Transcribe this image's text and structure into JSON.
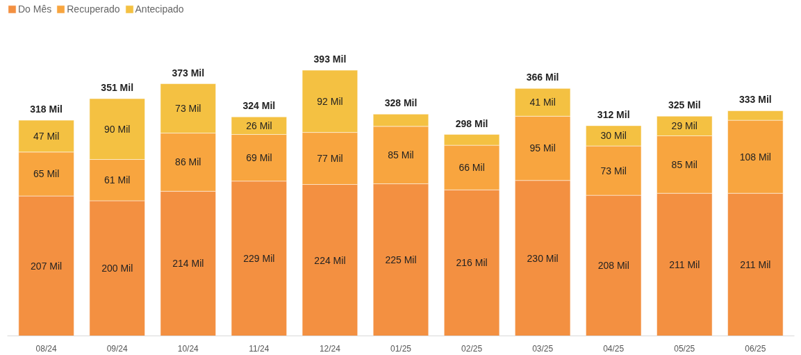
{
  "chart_data": {
    "type": "bar",
    "stacked": true,
    "legend": "top left",
    "grid": false,
    "tick_labels": "x",
    "categories": [
      "08/24",
      "09/24",
      "10/24",
      "11/24",
      "12/24",
      "01/25",
      "02/25",
      "03/25",
      "04/25",
      "05/25",
      "06/25"
    ],
    "series": [
      {
        "name": "Do Mês",
        "color": "#f39041",
        "values": [
          207,
          200,
          214,
          229,
          224,
          225,
          216,
          230,
          208,
          211,
          211
        ],
        "value_labels": [
          "207 Mil",
          "200 Mil",
          "214 Mil",
          "229 Mil",
          "224 Mil",
          "225 Mil",
          "216 Mil",
          "230 Mil",
          "208 Mil",
          "211 Mil",
          "211 Mil"
        ]
      },
      {
        "name": "Recuperado",
        "color": "#f8a53f",
        "values": [
          65,
          61,
          86,
          69,
          77,
          85,
          66,
          95,
          73,
          85,
          108
        ],
        "value_labels": [
          "65 Mil",
          "61 Mil",
          "86 Mil",
          "69 Mil",
          "77 Mil",
          "85 Mil",
          "66 Mil",
          "95 Mil",
          "73 Mil",
          "85 Mil",
          "108 Mil"
        ]
      },
      {
        "name": "Antecipado",
        "color": "#f4c142",
        "values": [
          47,
          90,
          73,
          26,
          92,
          18,
          16,
          41,
          30,
          29,
          14
        ],
        "value_labels": [
          "47 Mil",
          "90 Mil",
          "73 Mil",
          "26 Mil",
          "92 Mil",
          null,
          null,
          "41 Mil",
          "30 Mil",
          "29 Mil",
          null
        ]
      }
    ],
    "totals": [
      "318 Mil",
      "351 Mil",
      "373 Mil",
      "324 Mil",
      "393 Mil",
      "328 Mil",
      "298 Mil",
      "366 Mil",
      "312 Mil",
      "325 Mil",
      "333 Mil"
    ]
  }
}
